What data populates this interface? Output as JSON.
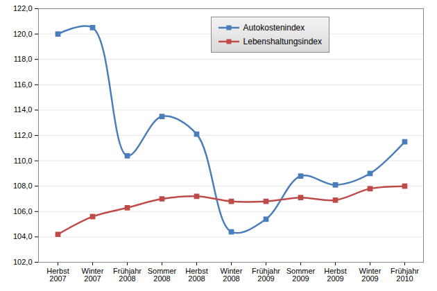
{
  "chart_data": {
    "type": "line",
    "categories": [
      "Herbst 2007",
      "Winter 2007",
      "Frühjahr 2008",
      "Sommer 2008",
      "Herbst 2008",
      "Winter 2008",
      "Frühjahr 2009",
      "Sommer 2009",
      "Herbst 2009",
      "Winter 2009",
      "Frühjahr 2010"
    ],
    "series": [
      {
        "name": "Autokostenindex",
        "color": "#4a7ebb",
        "values": [
          120.0,
          120.5,
          110.4,
          113.5,
          112.1,
          104.4,
          105.4,
          108.8,
          108.1,
          109.0,
          111.5
        ]
      },
      {
        "name": "Lebenshaltungsindex",
        "color": "#be4b48",
        "values": [
          104.2,
          105.6,
          106.3,
          107.0,
          107.2,
          106.8,
          106.8,
          107.1,
          106.9,
          107.8,
          108.0
        ]
      }
    ],
    "ylim": [
      102,
      122
    ],
    "yticks": [
      {
        "value": 102,
        "label": "102,0"
      },
      {
        "value": 104,
        "label": "104,0"
      },
      {
        "value": 106,
        "label": "106,0"
      },
      {
        "value": 108,
        "label": "108,0"
      },
      {
        "value": 110,
        "label": "110,0"
      },
      {
        "value": 112,
        "label": "112,0"
      },
      {
        "value": 114,
        "label": "114,0"
      },
      {
        "value": 116,
        "label": "116,0"
      },
      {
        "value": 118,
        "label": "118,0"
      },
      {
        "value": 120,
        "label": "120,0"
      },
      {
        "value": 122,
        "label": "122,0"
      }
    ],
    "grid": true,
    "legend": "top-right",
    "marker": "square",
    "line_style": "solid"
  }
}
